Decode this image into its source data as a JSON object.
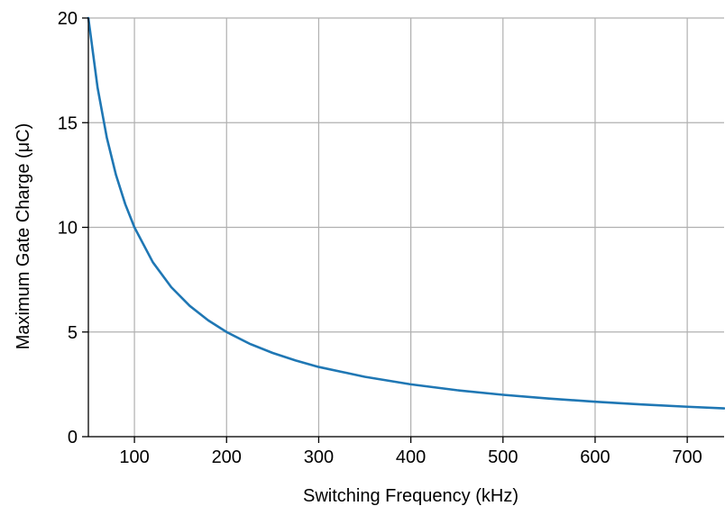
{
  "chart_data": {
    "type": "line",
    "title": "",
    "xlabel": "Switching Frequency (kHz)",
    "ylabel": "Maximum Gate Charge (μC)",
    "xlim": [
      50,
      740
    ],
    "ylim": [
      0,
      20
    ],
    "xticks": [
      100,
      200,
      300,
      400,
      500,
      600,
      700
    ],
    "yticks": [
      0,
      5,
      10,
      15,
      20
    ],
    "xtick_labels": [
      "100",
      "200",
      "300",
      "400",
      "500",
      "600",
      "700"
    ],
    "ytick_labels": [
      "0",
      "5",
      "10",
      "15",
      "20"
    ],
    "grid": true,
    "legend": "none",
    "series": [
      {
        "color": "#1f77b4",
        "x": [
          50,
          60,
          70,
          80,
          90,
          100,
          120,
          140,
          160,
          180,
          200,
          225,
          250,
          275,
          300,
          350,
          400,
          450,
          500,
          550,
          600,
          650,
          700,
          740
        ],
        "y": [
          20.0,
          16.67,
          14.29,
          12.5,
          11.11,
          10.0,
          8.33,
          7.14,
          6.25,
          5.56,
          5.0,
          4.44,
          4.0,
          3.64,
          3.33,
          2.86,
          2.5,
          2.22,
          2.0,
          1.82,
          1.67,
          1.54,
          1.43,
          1.35
        ]
      }
    ]
  }
}
